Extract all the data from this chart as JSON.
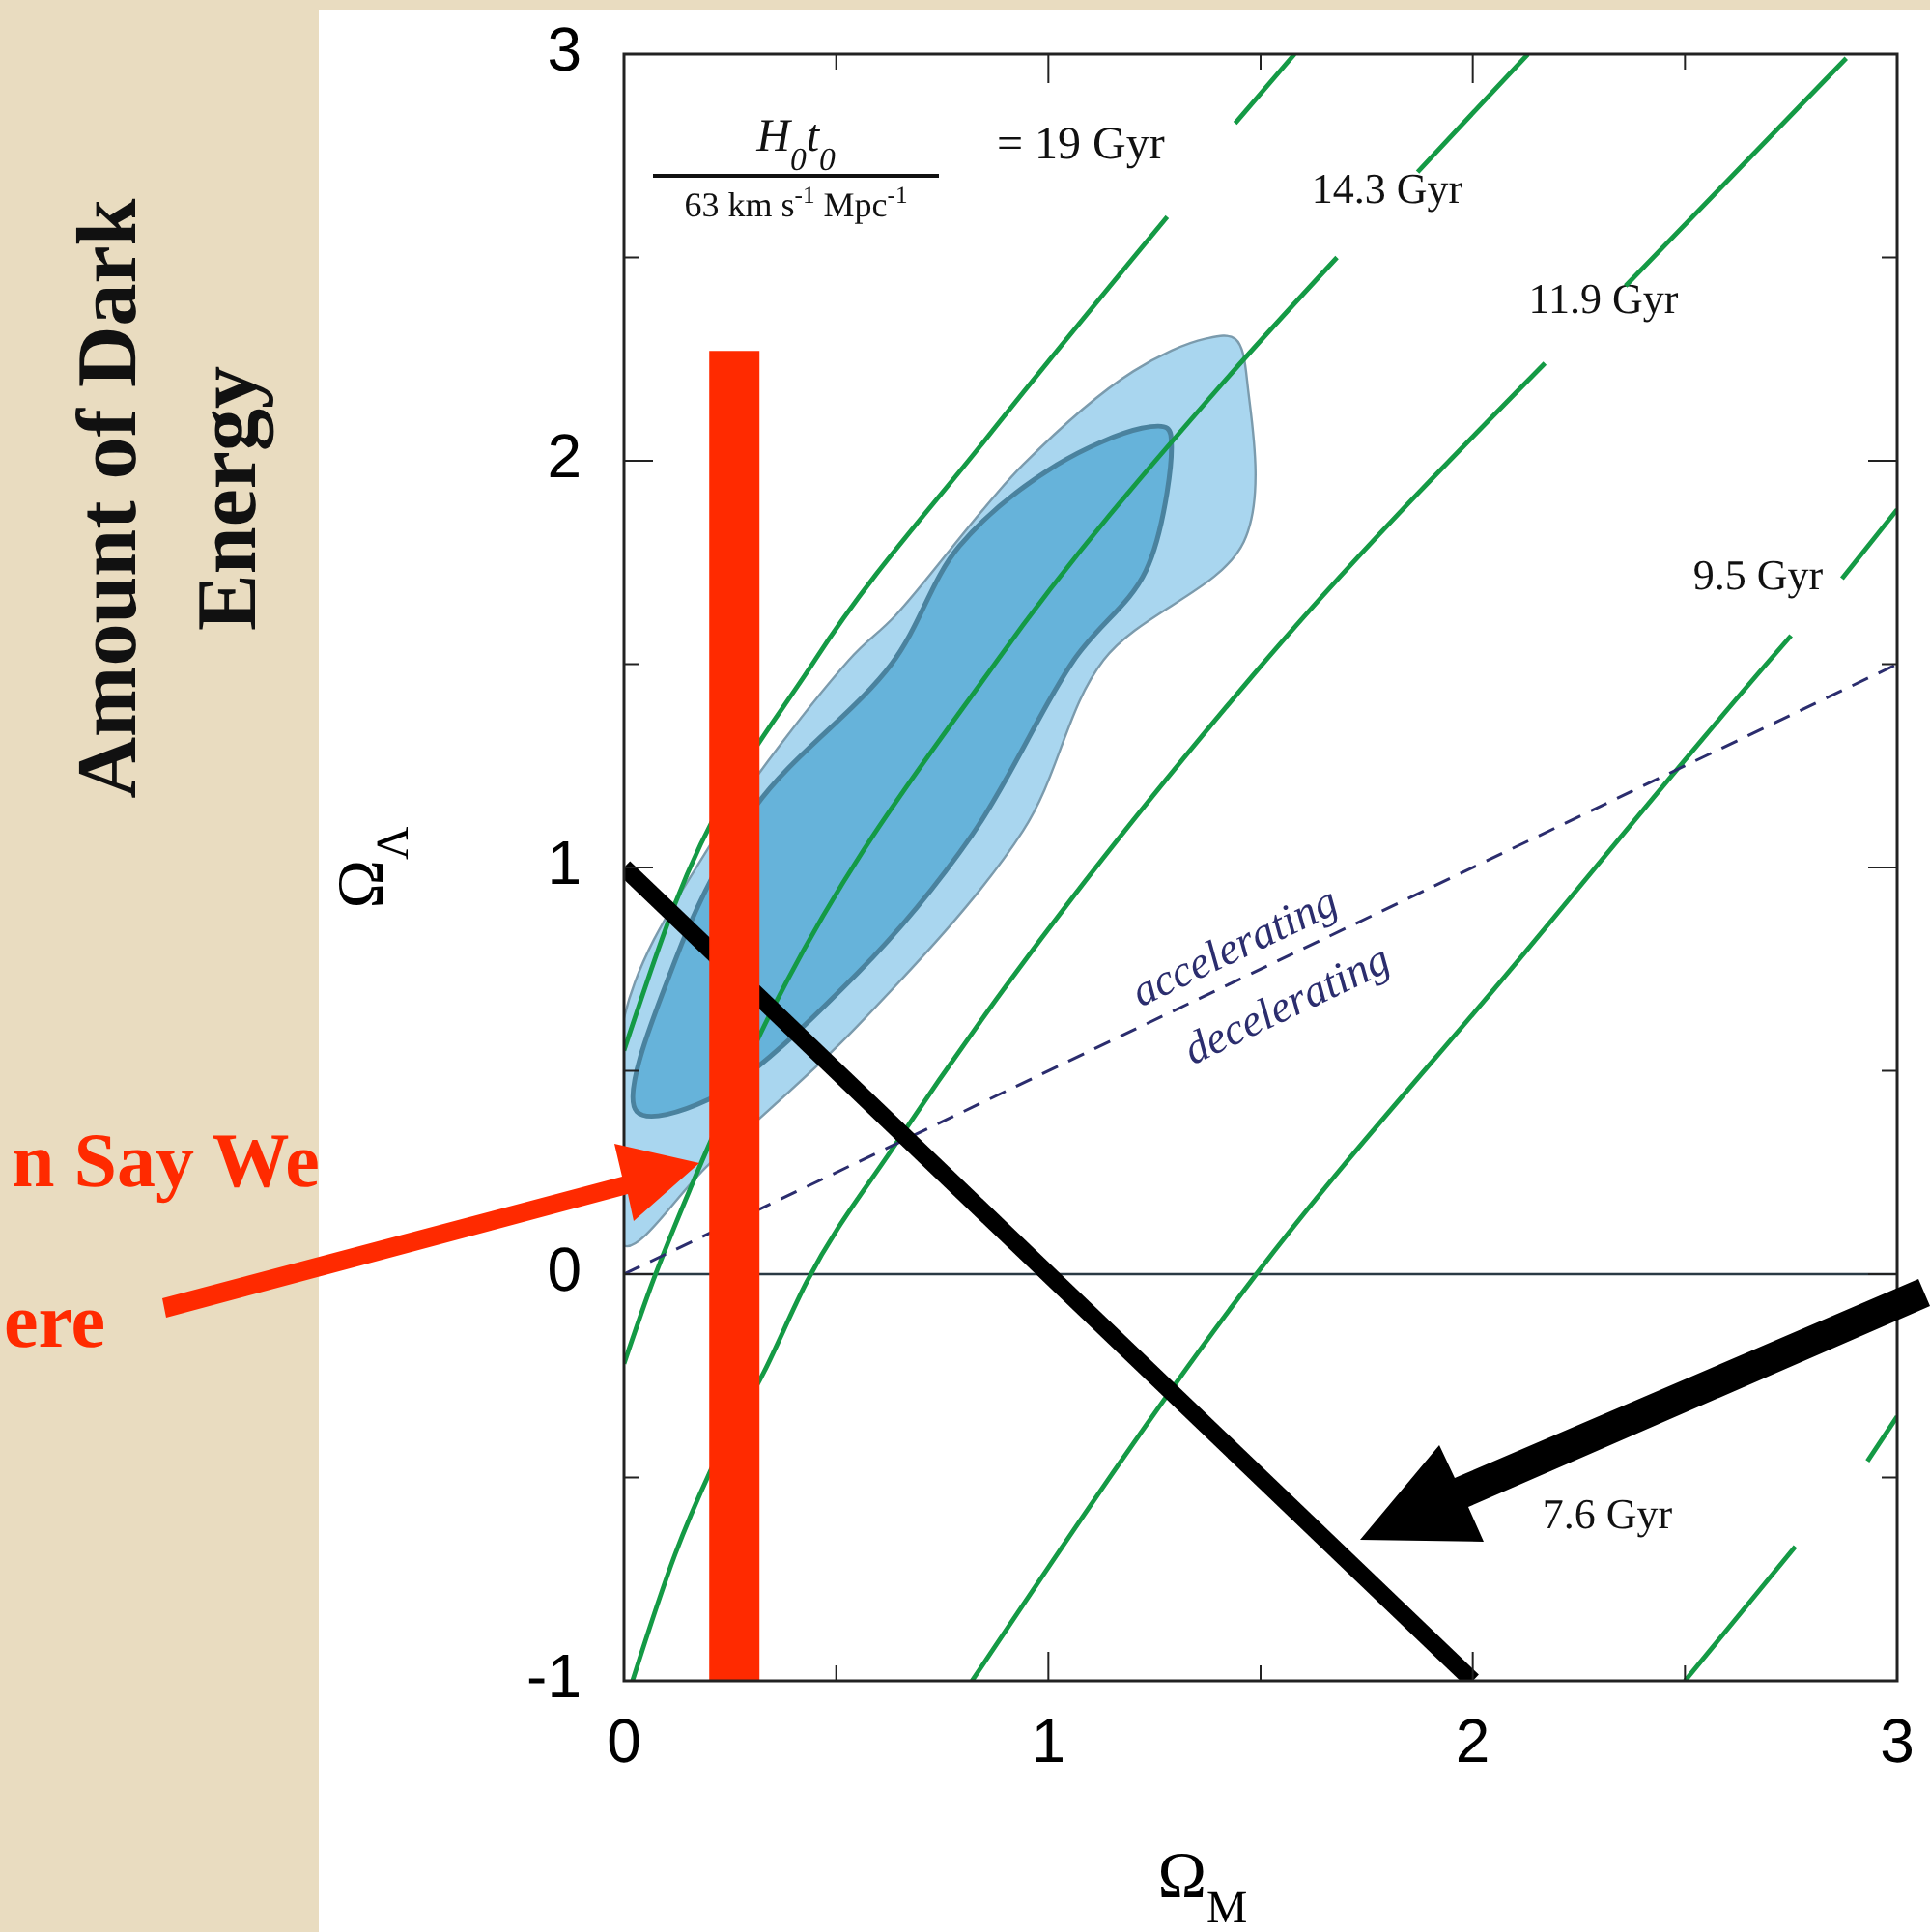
{
  "chart_data": {
    "type": "line",
    "xlabel": "Ω$_{M}$",
    "ylabel": "Ω$_{Λ}$",
    "xlim": [
      0,
      3
    ],
    "ylim": [
      -1,
      3
    ],
    "xticks": [
      0,
      {
        "value": 0.5,
        "label": null
      },
      1,
      {
        "value": 1.5,
        "label": null
      },
      2,
      {
        "value": 2.5,
        "label": null
      },
      3
    ],
    "yticks": [
      -1,
      {
        "value": -0.5,
        "label": null
      },
      0,
      {
        "value": 0.5,
        "label": null
      },
      1,
      {
        "value": 1.5,
        "label": null
      },
      2,
      {
        "value": 2.5,
        "label": null
      },
      3
    ],
    "ref_lines": [
      {
        "axis": "y",
        "value": 0,
        "color": "#2a3a44"
      }
    ],
    "annotations": [
      "Amount of Dark Energy",
      "n Say We",
      "ere",
      "H$_{0}$t$_{0}$",
      "63 km s$^{-1}$ Mpc$^{-1}$",
      "= 19 Gyr",
      "14.3 Gyr",
      "11.9 Gyr",
      "9.5 Gyr",
      "7.6 Gyr",
      "accelerating",
      "decelerating"
    ],
    "series": [
      {
        "type": "area",
        "color": "#a9d6ef",
        "x": [
          0,
          0.2,
          0.55,
          0.94,
          1.13,
          1.46,
          1.47,
          1.44,
          1.37,
          1.2,
          0.94,
          0.64,
          0.53,
          0.2,
          0
        ],
        "values": [
          0.07,
          0.27,
          0.61,
          1.09,
          1.51,
          1.8,
          2.18,
          2.3,
          2.3,
          2.22,
          1.99,
          1.62,
          1.51,
          1.05,
          0.63
        ]
      },
      {
        "type": "area",
        "color": "#66b3da",
        "x": [
          0.2,
          0.55,
          0.82,
          1.06,
          1.23,
          1.29,
          1.28,
          1.22,
          1.02,
          0.79,
          0.63,
          0.31,
          0.12,
          0.03
        ],
        "values": [
          0.43,
          0.74,
          1.08,
          1.51,
          1.73,
          2.04,
          2.08,
          2.08,
          1.99,
          1.79,
          1.5,
          1.15,
          0.77,
          0.4
        ]
      },
      {
        "color": "#149a45",
        "x": [
          0,
          0.12,
          0.45,
          0.85,
          1.28,
          1.36,
          1.44,
          1.58
        ],
        "values": [
          0.55,
          0.91,
          1.51,
          2.05,
          2.6,
          null,
          2.83,
          3.0
        ]
      },
      {
        "color": "#149a45",
        "x": [
          0,
          0.06,
          0.16,
          0.33,
          0.88,
          1.41,
          1.68,
          1.78,
          1.87,
          2.13
        ],
        "values": [
          -0.22,
          -0.04,
          0.22,
          0.61,
          1.51,
          2.19,
          2.5,
          null,
          2.71,
          3.0
        ]
      },
      {
        "color": "#149a45",
        "x": [
          0.02,
          0.12,
          0.21,
          0.33,
          0.43,
          0.64,
          1.48,
          2.17,
          2.27,
          2.36,
          2.88
        ],
        "values": [
          -1,
          -0.69,
          -0.47,
          -0.24,
          -0.02,
          0.32,
          1.47,
          2.24,
          null,
          2.43,
          2.99
        ]
      },
      {
        "color": "#149a45",
        "x": [
          0.82,
          1.49,
          2.09,
          2.7,
          2.75,
          2.81,
          2.87,
          3.0
        ],
        "values": [
          -1,
          0,
          0.75,
          1.51,
          1.57,
          null,
          1.71,
          1.88
        ]
      },
      {
        "color": "#149a45",
        "x": [
          2.5,
          2.76,
          2.85,
          2.93,
          3.0
        ],
        "values": [
          -1,
          -0.67,
          null,
          -0.46,
          -0.35
        ]
      },
      {
        "color": "#2b2d6e",
        "line_style": "dashed",
        "x": [
          0,
          3
        ],
        "values": [
          0,
          1.5
        ]
      },
      {
        "color": "#000000",
        "x": [
          0,
          2
        ],
        "values": [
          1,
          -1
        ]
      },
      {
        "color": "#ff2a00",
        "x": [
          0.26,
          0.26
        ],
        "values": [
          -1,
          2.27
        ]
      }
    ]
  }
}
